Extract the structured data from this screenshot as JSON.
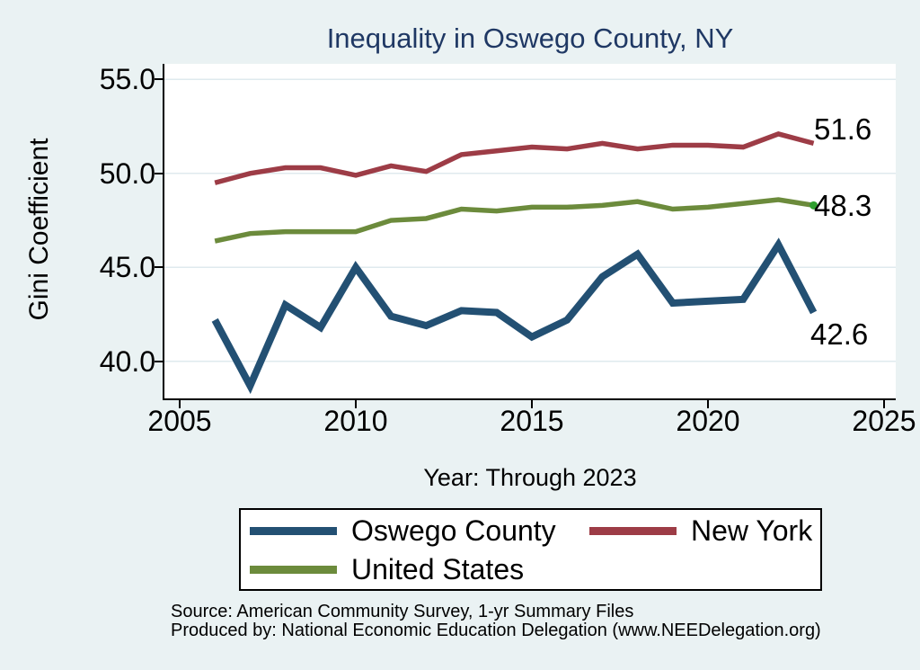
{
  "title": "Inequality in Oswego County, NY",
  "x_axis_title": "Year: Through 2023",
  "y_axis_title": "Gini Coefficient",
  "y_axis": {
    "tick_labels": [
      "55.0",
      "50.0",
      "45.0",
      "40.0"
    ],
    "tick_values": [
      55,
      50,
      45,
      40
    ]
  },
  "x_axis": {
    "tick_labels": [
      "2005",
      "2010",
      "2015",
      "2020",
      "2025"
    ],
    "tick_values": [
      2005,
      2010,
      2015,
      2020,
      2025
    ]
  },
  "chart_data": {
    "type": "line",
    "x": [
      2006,
      2007,
      2008,
      2009,
      2010,
      2011,
      2012,
      2013,
      2014,
      2015,
      2016,
      2017,
      2018,
      2019,
      2020,
      2021,
      2022,
      2023
    ],
    "series": [
      {
        "name": "Oswego County",
        "color": "#235073",
        "line_width": 8,
        "end_label": "42.6",
        "values": [
          42.2,
          38.7,
          43.0,
          41.8,
          45.0,
          42.4,
          41.9,
          42.7,
          42.6,
          41.3,
          42.2,
          44.5,
          45.7,
          43.1,
          43.2,
          43.3,
          46.2,
          42.6
        ]
      },
      {
        "name": "New York",
        "color": "#9d3c46",
        "line_width": 5.5,
        "end_label": "51.6",
        "values": [
          49.5,
          50.0,
          50.3,
          50.3,
          49.9,
          50.4,
          50.1,
          51.0,
          51.2,
          51.4,
          51.3,
          51.6,
          51.3,
          51.5,
          51.5,
          51.4,
          52.1,
          51.6
        ]
      },
      {
        "name": "United States",
        "color": "#6c8b3c",
        "line_width": 5.5,
        "end_label": "48.3",
        "end_marker_color": "#2f9e2f",
        "values": [
          46.4,
          46.8,
          46.9,
          46.9,
          46.9,
          47.5,
          47.6,
          48.1,
          48.0,
          48.2,
          48.2,
          48.3,
          48.5,
          48.1,
          48.2,
          48.4,
          48.6,
          48.3
        ]
      }
    ],
    "xlim": [
      2005,
      2025.3
    ],
    "ylim": [
      38.2,
      55.8
    ],
    "grid": "horizontal",
    "legend_position": "bottom"
  },
  "legend": {
    "entries": [
      {
        "label": "Oswego County",
        "color": "#235073"
      },
      {
        "label": "New York",
        "color": "#9d3c46"
      },
      {
        "label": "United States",
        "color": "#6c8b3c"
      }
    ]
  },
  "footer": {
    "line1": "Source: American Community Survey, 1-yr Summary Files",
    "line2": "Produced by: National Economic Education Delegation (www.NEEDelegation.org)"
  },
  "colors": {
    "background": "#eaf2f3",
    "plot_background": "#ffffff",
    "gridline": "#dfeaee",
    "title": "#1f3864",
    "axis": "#000000",
    "text": "#000000"
  }
}
